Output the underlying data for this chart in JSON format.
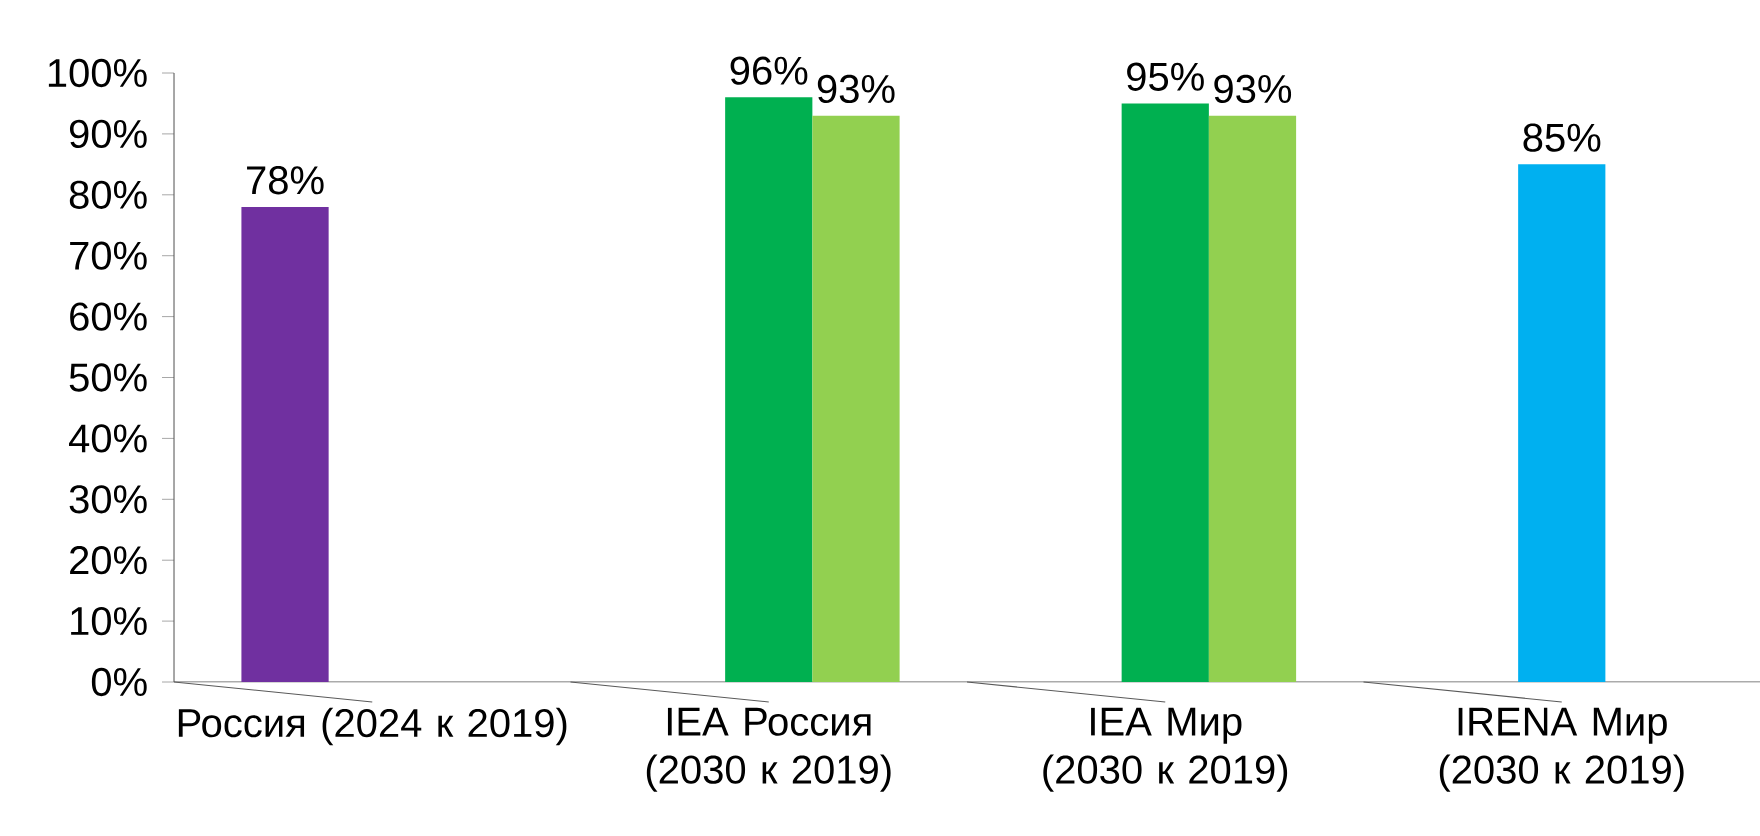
{
  "chart_data": {
    "type": "bar",
    "categories": [
      "Россия (2024 к 2019)",
      "IEA Россия (2030 к 2019)",
      "IEA Мир (2030 к 2019)",
      "IRENA Мир (2030 к 2019)"
    ],
    "series": [
      {
        "color": "#7030a0",
        "values": [
          78,
          null,
          null,
          null
        ],
        "value_labels": [
          "78%",
          null,
          null,
          null
        ]
      },
      {
        "colors": [
          "#00b050",
          "#00b050",
          "#00b050",
          "#00b0f0"
        ],
        "values": [
          null,
          96,
          95,
          85
        ],
        "value_labels": [
          null,
          "96%",
          "95%",
          "85%"
        ]
      },
      {
        "color": "#92d050",
        "values": [
          null,
          93,
          93,
          null
        ],
        "value_labels": [
          null,
          "93%",
          "93%",
          null
        ]
      }
    ],
    "ylim": [
      0,
      100
    ],
    "yticks": [
      {
        "value": 0,
        "label": "0%"
      },
      {
        "value": 10,
        "label": "10%"
      },
      {
        "value": 20,
        "label": "20%"
      },
      {
        "value": 30,
        "label": "30%"
      },
      {
        "value": 40,
        "label": "40%"
      },
      {
        "value": 50,
        "label": "50%"
      },
      {
        "value": 60,
        "label": "60%"
      },
      {
        "value": 70,
        "label": "70%"
      },
      {
        "value": 80,
        "label": "80%"
      },
      {
        "value": 90,
        "label": "90%"
      },
      {
        "value": 100,
        "label": "100%"
      }
    ]
  }
}
